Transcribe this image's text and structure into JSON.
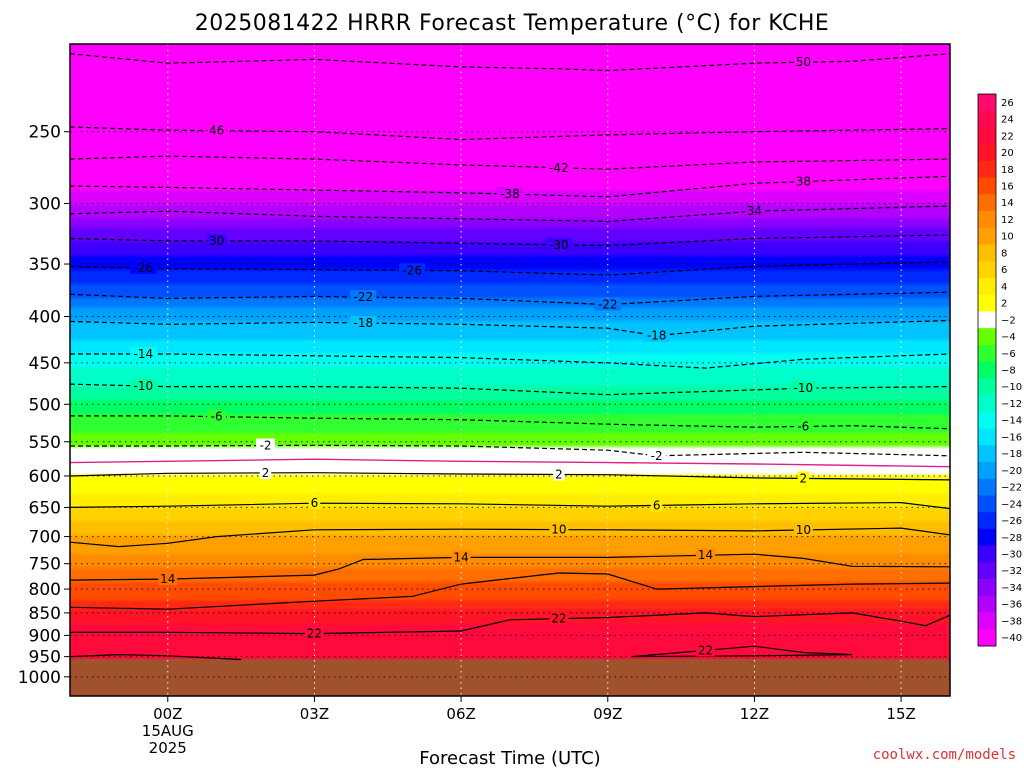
{
  "chart_data": {
    "type": "heatmap",
    "title": "2025081422 HRRR Forecast Temperature (°C) for KCHE",
    "xlabel": "Forecast Time (UTC)",
    "credit": "coolwx.com/models",
    "x_ticks": [
      {
        "hour": 0,
        "label": "00Z",
        "sub1": "15AUG",
        "sub2": "2025"
      },
      {
        "hour": 3,
        "label": "03Z"
      },
      {
        "hour": 6,
        "label": "06Z"
      },
      {
        "hour": 9,
        "label": "09Z"
      },
      {
        "hour": 12,
        "label": "12Z"
      },
      {
        "hour": 15,
        "label": "15Z"
      }
    ],
    "xlim": [
      -2,
      16
    ],
    "y_ticks": [
      250,
      300,
      350,
      400,
      450,
      500,
      550,
      600,
      650,
      700,
      750,
      800,
      850,
      900,
      950,
      1000
    ],
    "ylim_hpa": [
      200,
      1050
    ],
    "y_scale": "log-pressure (inverted)",
    "surface_pressure_hpa": 956,
    "colorbar_levels": [
      26,
      24,
      22,
      20,
      18,
      16,
      14,
      12,
      10,
      8,
      6,
      4,
      2,
      -2,
      -4,
      -6,
      -8,
      -10,
      -12,
      -14,
      -16,
      -18,
      -20,
      -22,
      -24,
      -26,
      -28,
      -30,
      -32,
      -34,
      -36,
      -38,
      -40
    ],
    "colorbar_colors": [
      "#ff0a6e",
      "#ff0a50",
      "#ff0a3c",
      "#ff1428",
      "#ff2814",
      "#ff4c00",
      "#ff6e00",
      "#ff8c00",
      "#ffa000",
      "#ffbe00",
      "#ffd200",
      "#ffee00",
      "#ffff00",
      "#ffffff",
      "#64ff00",
      "#30ff30",
      "#00ff64",
      "#00ffa0",
      "#00ffc8",
      "#00ffee",
      "#00e6ff",
      "#00c3ff",
      "#00a0ff",
      "#0078ff",
      "#0050ff",
      "#0028ff",
      "#0000ff",
      "#3c00ff",
      "#6400ff",
      "#8c00ff",
      "#b400ff",
      "#dc00ff",
      "#ff00ff"
    ],
    "levels": [
      {
        "p": 205,
        "t": -52
      },
      {
        "p": 250,
        "t": -46
      },
      {
        "p": 270,
        "t": -42
      },
      {
        "p": 290,
        "t": -38
      },
      {
        "p": 310,
        "t": -34
      },
      {
        "p": 330,
        "t": -30
      },
      {
        "p": 355,
        "t": -26
      },
      {
        "p": 380,
        "t": -22
      },
      {
        "p": 405,
        "t": -18
      },
      {
        "p": 440,
        "t": -14
      },
      {
        "p": 475,
        "t": -10
      },
      {
        "p": 515,
        "t": -6
      },
      {
        "p": 555,
        "t": -2
      },
      {
        "p": 580,
        "t": 0
      },
      {
        "p": 600,
        "t": 2
      },
      {
        "p": 650,
        "t": 6
      },
      {
        "p": 700,
        "t": 10
      },
      {
        "p": 760,
        "t": 14
      },
      {
        "p": 820,
        "t": 18
      },
      {
        "p": 870,
        "t": 22
      },
      {
        "p": 956,
        "t": 24
      }
    ],
    "contours": [
      {
        "value": -50,
        "style": "dashed",
        "pts": [
          [
            -2,
            205
          ],
          [
            0,
            210
          ],
          [
            3,
            208
          ],
          [
            6,
            212
          ],
          [
            8,
            213
          ],
          [
            9,
            214
          ],
          [
            12,
            210
          ],
          [
            14,
            209
          ],
          [
            16,
            205
          ]
        ],
        "labels": [
          {
            "x": 13,
            "text": "50"
          }
        ]
      },
      {
        "value": -46,
        "style": "dashed",
        "pts": [
          [
            -2,
            247
          ],
          [
            0,
            249
          ],
          [
            3,
            250
          ],
          [
            6,
            255
          ],
          [
            9,
            252
          ],
          [
            12,
            250
          ],
          [
            16,
            248
          ]
        ],
        "labels": [
          {
            "x": 1,
            "text": "46"
          }
        ]
      },
      {
        "value": -42,
        "style": "dashed",
        "pts": [
          [
            -2,
            268
          ],
          [
            0,
            266
          ],
          [
            3,
            268
          ],
          [
            6,
            272
          ],
          [
            9,
            275
          ],
          [
            12,
            270
          ],
          [
            16,
            268
          ]
        ],
        "labels": [
          {
            "x": 8,
            "text": "-42"
          }
        ]
      },
      {
        "value": -38,
        "style": "dashed",
        "pts": [
          [
            -2,
            287
          ],
          [
            0,
            288
          ],
          [
            3,
            290
          ],
          [
            6,
            292
          ],
          [
            9,
            295
          ],
          [
            12,
            285
          ],
          [
            16,
            280
          ]
        ],
        "labels": [
          {
            "x": 7,
            "text": "-38"
          },
          {
            "x": 13,
            "text": "38"
          }
        ]
      },
      {
        "value": -34,
        "style": "dashed",
        "pts": [
          [
            -2,
            308
          ],
          [
            0,
            306
          ],
          [
            3,
            310
          ],
          [
            6,
            312
          ],
          [
            9,
            314
          ],
          [
            12,
            306
          ],
          [
            16,
            302
          ]
        ],
        "labels": [
          {
            "x": 12,
            "text": "34"
          }
        ]
      },
      {
        "value": -30,
        "style": "dashed",
        "pts": [
          [
            -2,
            328
          ],
          [
            0,
            330
          ],
          [
            3,
            330
          ],
          [
            6,
            332
          ],
          [
            9,
            334
          ],
          [
            12,
            328
          ],
          [
            16,
            325
          ]
        ],
        "labels": [
          {
            "x": 1,
            "text": "30"
          },
          {
            "x": 8,
            "text": "-30"
          }
        ]
      },
      {
        "value": -26,
        "style": "dashed",
        "pts": [
          [
            -2,
            352
          ],
          [
            0,
            354
          ],
          [
            3,
            355
          ],
          [
            6,
            356
          ],
          [
            9,
            360
          ],
          [
            12,
            352
          ],
          [
            16,
            348
          ]
        ],
        "labels": [
          {
            "x": -0.5,
            "text": "-26"
          },
          {
            "x": 5,
            "text": "-26"
          }
        ]
      },
      {
        "value": -22,
        "style": "dashed",
        "pts": [
          [
            -2,
            378
          ],
          [
            0,
            382
          ],
          [
            3,
            380
          ],
          [
            6,
            382
          ],
          [
            9,
            388
          ],
          [
            12,
            380
          ],
          [
            16,
            376
          ]
        ],
        "labels": [
          {
            "x": 4,
            "text": "-22"
          },
          {
            "x": 9,
            "text": "-22"
          }
        ]
      },
      {
        "value": -18,
        "style": "dashed",
        "pts": [
          [
            -2,
            405
          ],
          [
            0,
            408
          ],
          [
            3,
            406
          ],
          [
            6,
            408
          ],
          [
            9,
            412
          ],
          [
            10,
            420
          ],
          [
            12,
            410
          ],
          [
            16,
            404
          ]
        ],
        "labels": [
          {
            "x": 4,
            "text": "-18"
          },
          {
            "x": 10,
            "text": "-18"
          }
        ]
      },
      {
        "value": -14,
        "style": "dashed",
        "pts": [
          [
            -2,
            440
          ],
          [
            0,
            440
          ],
          [
            3,
            442
          ],
          [
            6,
            444
          ],
          [
            9,
            450
          ],
          [
            11,
            456
          ],
          [
            13,
            446
          ],
          [
            16,
            440
          ]
        ],
        "labels": [
          {
            "x": -0.5,
            "text": "-14"
          }
        ]
      },
      {
        "value": -10,
        "style": "dashed",
        "pts": [
          [
            -2,
            475
          ],
          [
            0,
            478
          ],
          [
            3,
            478
          ],
          [
            6,
            480
          ],
          [
            9,
            488
          ],
          [
            12,
            482
          ],
          [
            13,
            480
          ],
          [
            16,
            478
          ]
        ],
        "labels": [
          {
            "x": -0.5,
            "text": "-10"
          },
          {
            "x": 13,
            "text": "-10"
          }
        ]
      },
      {
        "value": -6,
        "style": "dashed",
        "pts": [
          [
            -2,
            515
          ],
          [
            0,
            515
          ],
          [
            3,
            518
          ],
          [
            6,
            520
          ],
          [
            9,
            526
          ],
          [
            12,
            530
          ],
          [
            14,
            528
          ],
          [
            16,
            532
          ]
        ],
        "labels": [
          {
            "x": 1,
            "text": "-6"
          },
          {
            "x": 13,
            "text": "-6"
          }
        ]
      },
      {
        "value": -2,
        "style": "dashed",
        "pts": [
          [
            -2,
            556
          ],
          [
            0,
            556
          ],
          [
            3,
            555
          ],
          [
            6,
            556
          ],
          [
            9,
            562
          ],
          [
            10,
            570
          ],
          [
            13,
            565
          ],
          [
            16,
            570
          ]
        ],
        "labels": [
          {
            "x": 2,
            "text": "-2"
          },
          {
            "x": 10,
            "text": "-2"
          }
        ]
      },
      {
        "value": 0,
        "style": "freezing",
        "pts": [
          [
            -2,
            580
          ],
          [
            0,
            578
          ],
          [
            3,
            575
          ],
          [
            6,
            578
          ],
          [
            9,
            580
          ],
          [
            12,
            582
          ],
          [
            16,
            586
          ]
        ],
        "labels": []
      },
      {
        "value": 2,
        "style": "solid",
        "pts": [
          [
            -2,
            600
          ],
          [
            0,
            596
          ],
          [
            3,
            595
          ],
          [
            6,
            597
          ],
          [
            9,
            598
          ],
          [
            12,
            603
          ],
          [
            16,
            606
          ]
        ],
        "labels": [
          {
            "x": 2,
            "text": "2"
          },
          {
            "x": 8,
            "text": "2"
          },
          {
            "x": 13,
            "text": "2"
          }
        ]
      },
      {
        "value": 6,
        "style": "solid",
        "pts": [
          [
            -2,
            650
          ],
          [
            0,
            648
          ],
          [
            3,
            643
          ],
          [
            6,
            644
          ],
          [
            9,
            648
          ],
          [
            12,
            644
          ],
          [
            15,
            642
          ],
          [
            16,
            652
          ]
        ],
        "labels": [
          {
            "x": 3,
            "text": "6"
          },
          {
            "x": 10,
            "text": "6"
          }
        ]
      },
      {
        "value": 10,
        "style": "solid",
        "pts": [
          [
            -2,
            710
          ],
          [
            -1,
            718
          ],
          [
            0,
            712
          ],
          [
            1,
            700
          ],
          [
            3,
            688
          ],
          [
            6,
            687
          ],
          [
            9,
            688
          ],
          [
            12,
            690
          ],
          [
            15,
            685
          ],
          [
            16,
            697
          ]
        ],
        "labels": [
          {
            "x": 8,
            "text": "10"
          },
          {
            "x": 13,
            "text": "10"
          }
        ]
      },
      {
        "value": 14,
        "style": "solid",
        "pts": [
          [
            -2,
            782
          ],
          [
            0,
            780
          ],
          [
            3,
            772
          ],
          [
            3.5,
            760
          ],
          [
            4,
            742
          ],
          [
            6,
            738
          ],
          [
            9,
            738
          ],
          [
            12,
            732
          ],
          [
            13,
            740
          ],
          [
            14,
            755
          ],
          [
            16,
            756
          ]
        ],
        "labels": [
          {
            "x": 0,
            "text": "14"
          },
          {
            "x": 6,
            "text": "14"
          },
          {
            "x": 11,
            "text": "14"
          }
        ]
      },
      {
        "value": 18,
        "style": "solid",
        "pts": [
          [
            -2,
            838
          ],
          [
            0,
            842
          ],
          [
            3,
            825
          ],
          [
            5,
            815
          ],
          [
            6,
            790
          ],
          [
            8,
            768
          ],
          [
            9,
            770
          ],
          [
            10,
            800
          ],
          [
            12,
            795
          ],
          [
            14,
            790
          ],
          [
            16,
            788
          ]
        ],
        "labels": []
      },
      {
        "value": 22,
        "style": "solid",
        "pts": [
          [
            -2,
            893
          ],
          [
            0,
            893
          ],
          [
            3,
            896
          ],
          [
            6,
            890
          ],
          [
            7,
            865
          ],
          [
            9,
            860
          ],
          [
            11,
            850
          ],
          [
            12,
            858
          ],
          [
            14,
            850
          ],
          [
            15,
            868
          ],
          [
            15.5,
            878
          ],
          [
            16,
            855
          ]
        ],
        "labels": [
          {
            "x": 3,
            "text": "22"
          },
          {
            "x": 8,
            "text": "22"
          }
        ]
      },
      {
        "value": 22,
        "style": "solid",
        "pts": [
          [
            9.5,
            950
          ],
          [
            12,
            925
          ],
          [
            13,
            940
          ],
          [
            14,
            945
          ],
          [
            12,
            948
          ],
          [
            9.5,
            950
          ]
        ],
        "labels": [
          {
            "x": 11,
            "text": "22"
          }
        ]
      },
      {
        "value": 24,
        "style": "solid",
        "pts": [
          [
            -2,
            950
          ],
          [
            -1,
            945
          ],
          [
            0,
            948
          ],
          [
            1.5,
            957
          ]
        ],
        "labels": []
      }
    ]
  }
}
